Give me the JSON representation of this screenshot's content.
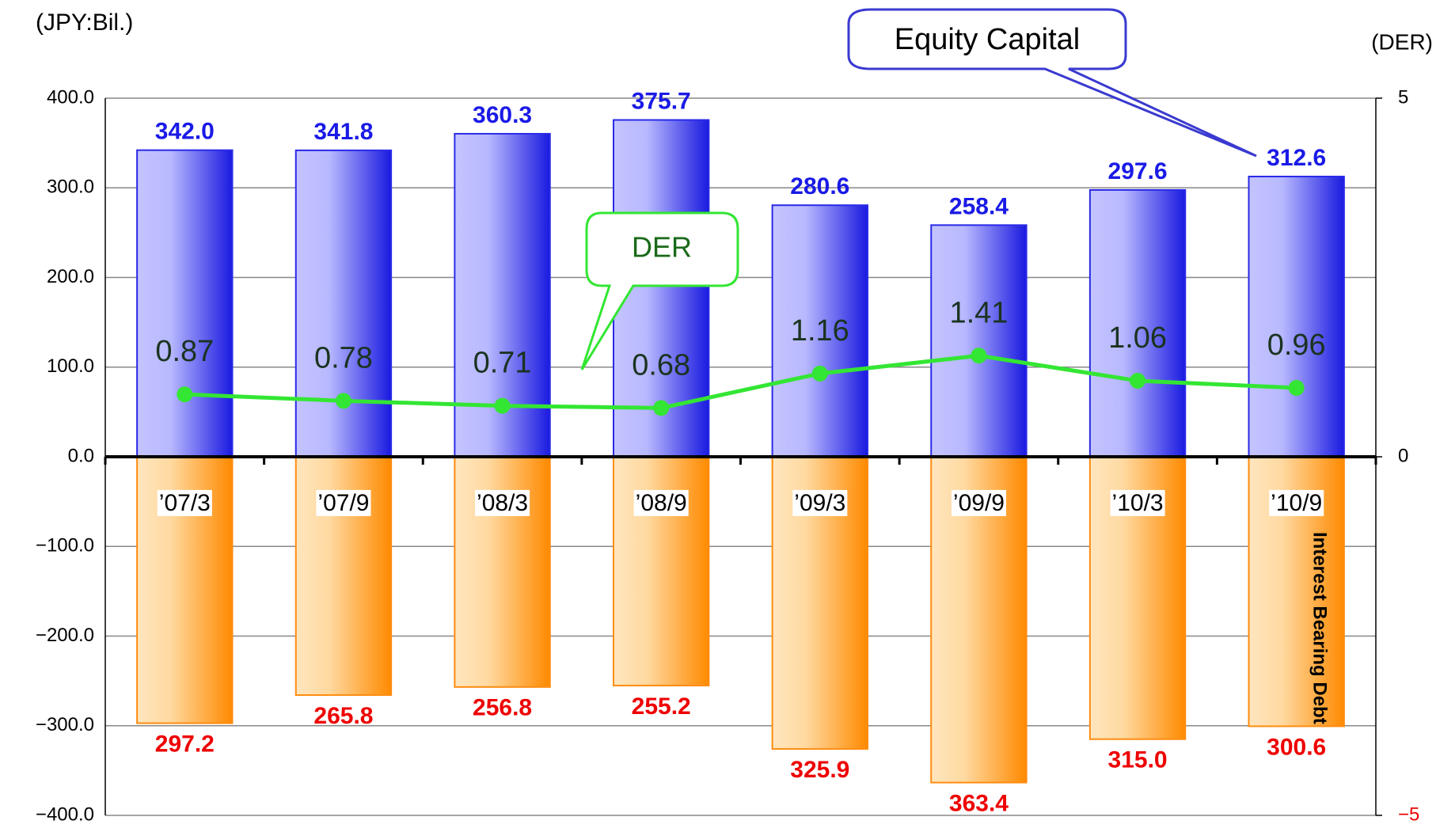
{
  "chart_data": {
    "type": "bar",
    "y_label": "(JPY:Bil.)",
    "y2_label": "(DER)",
    "categories": [
      "’07/3",
      "’07/9",
      "’08/3",
      "’08/9",
      "’09/3",
      "’09/9",
      "’10/3",
      "’10/9"
    ],
    "series": [
      {
        "name": "Equity Capital",
        "color": "#2a2ae8",
        "values": [
          342.0,
          341.8,
          360.3,
          375.7,
          280.6,
          258.4,
          297.6,
          312.6
        ],
        "value_labels": [
          "342.0",
          "341.8",
          "360.3",
          "375.7",
          "280.6",
          "258.4",
          "297.6",
          "312.6"
        ]
      },
      {
        "name": "Interest Bearing Debt",
        "color": "#ff8c10",
        "values": [
          -297.2,
          -265.8,
          -256.8,
          -255.2,
          -325.9,
          -363.4,
          -315.0,
          -300.6
        ],
        "value_labels": [
          "297.2",
          "265.8",
          "256.8",
          "255.2",
          "325.9",
          "363.4",
          "315.0",
          "300.6"
        ]
      },
      {
        "name": "DER",
        "type": "line",
        "axis": "y2",
        "color": "#33e633",
        "values": [
          0.87,
          0.78,
          0.71,
          0.68,
          1.16,
          1.41,
          1.06,
          0.96
        ]
      }
    ],
    "ylim": [
      -400,
      400
    ],
    "yticks": [
      {
        "value": 400,
        "label": "400.0"
      },
      {
        "value": 300,
        "label": "300.0"
      },
      {
        "value": 200,
        "label": "200.0"
      },
      {
        "value": 100,
        "label": "100.0"
      },
      {
        "value": 0,
        "label": "0.0"
      },
      {
        "value": -100,
        "label": "−100.0"
      },
      {
        "value": -200,
        "label": "−200.0"
      },
      {
        "value": -300,
        "label": "−300.0"
      },
      {
        "value": -400,
        "label": "−400.0"
      }
    ],
    "y2lim": [
      -5,
      5
    ],
    "y2ticks": [
      5,
      0,
      {
        "value": -5,
        "label": "−5"
      }
    ],
    "grid": true
  }
}
